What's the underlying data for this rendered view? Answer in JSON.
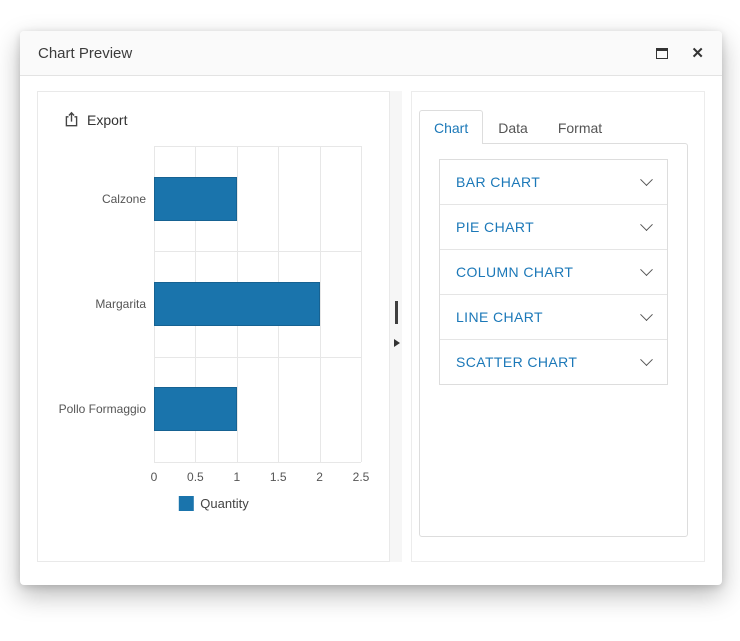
{
  "window": {
    "title": "Chart Preview"
  },
  "toolbar": {
    "export_label": "Export"
  },
  "chart_data": {
    "type": "bar",
    "orientation": "horizontal",
    "categories": [
      "Calzone",
      "Margarita",
      "Pollo Formaggio"
    ],
    "values": [
      1,
      2,
      1
    ],
    "title": "",
    "xlabel": "",
    "ylabel": "",
    "xlim": [
      0,
      2.5
    ],
    "xticks": [
      "0",
      "0.5",
      "1",
      "1.5",
      "2",
      "2.5"
    ],
    "grid": true,
    "legend": {
      "label": "Quantity",
      "position": "bottom"
    },
    "bar_color": "#1a74ac"
  },
  "right_panel": {
    "tabs": [
      {
        "label": "Chart",
        "active": true
      },
      {
        "label": "Data",
        "active": false
      },
      {
        "label": "Format",
        "active": false
      }
    ],
    "chart_types": [
      {
        "label": "BAR CHART"
      },
      {
        "label": "PIE CHART"
      },
      {
        "label": "COLUMN CHART"
      },
      {
        "label": "LINE CHART"
      },
      {
        "label": "SCATTER CHART"
      }
    ]
  },
  "colors": {
    "accent_blue": "#1b78b8",
    "bar_blue": "#1a74ac",
    "inactive_text": "#555555",
    "grid_line": "#e7e7e7"
  }
}
